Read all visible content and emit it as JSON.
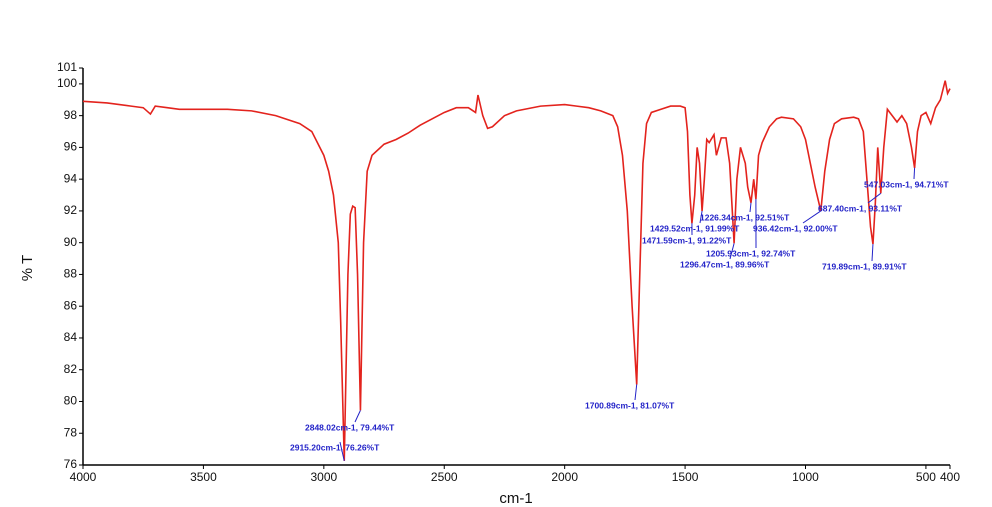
{
  "chart_data": {
    "type": "line",
    "y_label": "% T",
    "x_label": "cm-1",
    "xlim": [
      4000,
      400
    ],
    "ylim": [
      76,
      101
    ],
    "xticks": [
      4000,
      3500,
      3000,
      2500,
      2000,
      1500,
      1000,
      500,
      400
    ],
    "yticks": [
      76,
      78,
      80,
      82,
      84,
      86,
      88,
      90,
      92,
      94,
      96,
      98,
      100,
      101
    ],
    "series": [
      {
        "color": "#e3231d",
        "x": [
          4000,
          3900,
          3800,
          3750,
          3720,
          3700,
          3650,
          3600,
          3500,
          3400,
          3300,
          3200,
          3100,
          3050,
          3000,
          2980,
          2960,
          2940,
          2930,
          2915.2,
          2900,
          2890,
          2880,
          2870,
          2860,
          2848.02,
          2835,
          2820,
          2800,
          2750,
          2700,
          2650,
          2600,
          2550,
          2500,
          2450,
          2400,
          2370,
          2360,
          2340,
          2320,
          2300,
          2250,
          2200,
          2100,
          2000,
          1950,
          1900,
          1850,
          1800,
          1780,
          1760,
          1740,
          1720,
          1700.89,
          1690,
          1675,
          1660,
          1640,
          1600,
          1560,
          1520,
          1500,
          1490,
          1480,
          1471.59,
          1460,
          1450,
          1440,
          1429.52,
          1420,
          1410,
          1400,
          1380,
          1370,
          1350,
          1330,
          1315,
          1296.47,
          1285,
          1270,
          1250,
          1240,
          1226.34,
          1215,
          1205.93,
          1195,
          1180,
          1150,
          1120,
          1100,
          1050,
          1020,
          1000,
          980,
          960,
          936.42,
          920,
          900,
          880,
          850,
          800,
          780,
          760,
          740,
          730,
          719.89,
          710,
          700,
          687.4,
          675,
          660,
          640,
          620,
          600,
          580,
          560,
          547.03,
          535,
          520,
          500,
          480,
          460,
          440,
          420,
          410,
          400
        ],
        "values": [
          98.9,
          98.8,
          98.6,
          98.5,
          98.1,
          98.6,
          98.5,
          98.4,
          98.4,
          98.4,
          98.3,
          98.0,
          97.5,
          97.0,
          95.5,
          94.5,
          93.0,
          90,
          85,
          76.26,
          88,
          91.8,
          92.3,
          92.2,
          88,
          79.44,
          90,
          94.5,
          95.5,
          96.2,
          96.5,
          96.9,
          97.4,
          97.8,
          98.2,
          98.5,
          98.5,
          98.2,
          99.3,
          98.0,
          97.2,
          97.3,
          98.0,
          98.3,
          98.6,
          98.7,
          98.6,
          98.5,
          98.3,
          98.0,
          97.3,
          95.5,
          92,
          86,
          81.07,
          87,
          95,
          97.5,
          98.2,
          98.4,
          98.6,
          98.6,
          98.5,
          97,
          93,
          91.22,
          93,
          96,
          95,
          91.99,
          94,
          96.5,
          96.3,
          96.8,
          95.5,
          96.6,
          96.6,
          95.0,
          89.96,
          94,
          96,
          95,
          93.5,
          92.51,
          94,
          92.74,
          95.5,
          96.3,
          97.3,
          97.8,
          97.9,
          97.8,
          97.3,
          96.5,
          95,
          93.5,
          92.0,
          94.5,
          96.5,
          97.5,
          97.8,
          97.9,
          97.8,
          97,
          93,
          91,
          89.91,
          92.5,
          96,
          93.11,
          96,
          98.4,
          98.0,
          97.6,
          98.0,
          97.5,
          96,
          94.71,
          97.0,
          98,
          98.2,
          97.5,
          98.5,
          99,
          100.2,
          99.4,
          99.7
        ]
      }
    ],
    "annotations": [
      {
        "text": "2848.02cm-1, 79.44%T",
        "x": 2848.02,
        "y": 79.44
      },
      {
        "text": "2915.20cm-1, 76.26%T",
        "x": 2915.2,
        "y": 76.26
      },
      {
        "text": "1700.89cm-1, 81.07%T",
        "x": 1700.89,
        "y": 81.07
      },
      {
        "text": "1471.59cm-1, 91.22%T",
        "x": 1471.59,
        "y": 91.22
      },
      {
        "text": "1429.52cm-1, 91.99%T",
        "x": 1429.52,
        "y": 91.99
      },
      {
        "text": "1226.34cm-1, 92.51%T",
        "x": 1226.34,
        "y": 92.51
      },
      {
        "text": "1205.93cm-1, 92.74%T",
        "x": 1205.93,
        "y": 92.74
      },
      {
        "text": "1296.47cm-1, 89.96%T",
        "x": 1296.47,
        "y": 89.96
      },
      {
        "text": "936.42cm-1, 92.00%T",
        "x": 936.42,
        "y": 92.0
      },
      {
        "text": "719.89cm-1, 89.91%T",
        "x": 719.89,
        "y": 89.91
      },
      {
        "text": "687.40cm-1, 93.11%T",
        "x": 687.4,
        "y": 93.11
      },
      {
        "text": "547.03cm-1, 94.71%T",
        "x": 547.03,
        "y": 94.71
      }
    ]
  }
}
